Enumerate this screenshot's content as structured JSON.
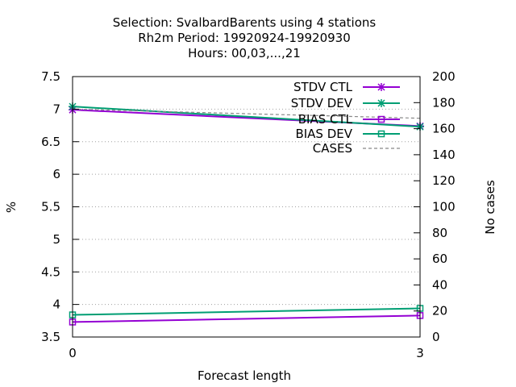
{
  "chart_data": {
    "type": "line",
    "title_lines": [
      "Selection: SvalbardBarents using     4 stations",
      "Rh2m   Period: 19920924-19920930",
      "Hours:  00,03,...,21"
    ],
    "xlabel": "Forecast length",
    "ylabel": "%",
    "y2label": "No cases",
    "x_ticks": [
      "0",
      "3"
    ],
    "y_ticks": [
      "3.5",
      "4",
      "4.5",
      "5",
      "5.5",
      "6",
      "6.5",
      "7",
      "7.5"
    ],
    "y2_ticks": [
      "0",
      "20",
      "40",
      "60",
      "80",
      "100",
      "120",
      "140",
      "160",
      "180",
      "200"
    ],
    "xlim": [
      0,
      3
    ],
    "ylim": [
      3.5,
      7.5
    ],
    "y2lim": [
      0,
      200
    ],
    "grid": "horizontal dotted",
    "legend_position": "top-right",
    "series": [
      {
        "name": "STDV CTL",
        "axis": "y",
        "color": "#9400d3",
        "marker": "x",
        "x": [
          0,
          3
        ],
        "y": [
          6.99,
          6.74
        ]
      },
      {
        "name": "STDV DEV",
        "axis": "y",
        "color": "#009e73",
        "marker": "x",
        "x": [
          0,
          3
        ],
        "y": [
          7.04,
          6.73
        ]
      },
      {
        "name": "BIAS CTL",
        "axis": "y",
        "color": "#9400d3",
        "marker": "square",
        "x": [
          0,
          3
        ],
        "y": [
          3.73,
          3.83
        ]
      },
      {
        "name": "BIAS DEV",
        "axis": "y",
        "color": "#009e73",
        "marker": "square",
        "x": [
          0,
          3
        ],
        "y": [
          3.84,
          3.94
        ]
      },
      {
        "name": "CASES",
        "axis": "y2",
        "color": "#888888",
        "marker": "none",
        "dashed": true,
        "x": [
          0,
          3
        ],
        "y": [
          175,
          168
        ]
      }
    ]
  }
}
